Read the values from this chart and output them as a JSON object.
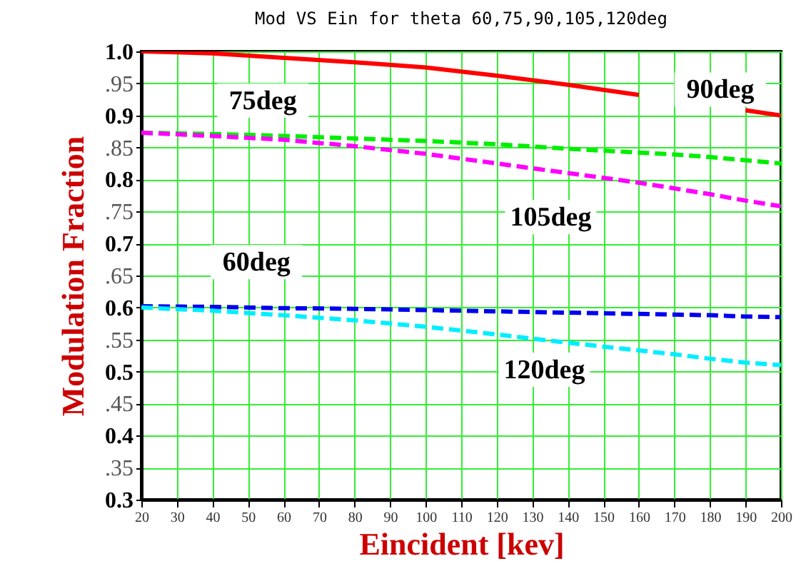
{
  "chart_data": {
    "type": "line",
    "title": "Mod VS Ein for theta 60,75,90,105,120deg",
    "xlabel": "Eincident [kev]",
    "ylabel": "Modulation Fraction",
    "x": [
      20,
      40,
      60,
      80,
      100,
      120,
      140,
      160,
      170,
      180,
      190,
      200
    ],
    "series": [
      {
        "name": "90deg",
        "color": "#ff0000",
        "line_style": "solid",
        "values": [
          1.0,
          0.997,
          0.99,
          0.983,
          0.975,
          0.962,
          0.948,
          0.932,
          null,
          null,
          0.908,
          0.9
        ]
      },
      {
        "name": "75deg",
        "color": "#00ee00",
        "line_style": "dashed",
        "values": [
          0.873,
          0.871,
          0.868,
          0.864,
          0.86,
          0.855,
          0.848,
          0.842,
          0.839,
          0.835,
          0.83,
          0.825
        ]
      },
      {
        "name": "105deg",
        "color": "#ff00ff",
        "line_style": "dashed",
        "values": [
          0.873,
          0.868,
          0.862,
          0.852,
          0.84,
          0.825,
          0.81,
          0.795,
          0.786,
          0.777,
          0.767,
          0.758
        ]
      },
      {
        "name": "60deg",
        "color": "#0000ee",
        "line_style": "dashed",
        "values": [
          0.602,
          0.601,
          0.599,
          0.598,
          0.596,
          0.594,
          0.592,
          0.59,
          0.589,
          0.588,
          0.586,
          0.585
        ]
      },
      {
        "name": "120deg",
        "color": "#00eeff",
        "line_style": "dashed",
        "values": [
          0.6,
          0.595,
          0.588,
          0.58,
          0.57,
          0.558,
          0.545,
          0.533,
          0.527,
          0.52,
          0.514,
          0.51
        ]
      }
    ],
    "xlim": [
      20,
      200
    ],
    "xticks": [
      20,
      30,
      40,
      50,
      60,
      70,
      80,
      90,
      100,
      110,
      120,
      130,
      140,
      150,
      160,
      170,
      180,
      190,
      200
    ],
    "ylim": [
      0.3,
      1.0
    ],
    "yticks": [
      0.3,
      {
        "value": 0.35,
        "label": ".35"
      },
      0.4,
      {
        "value": 0.45,
        "label": ".45"
      },
      0.5,
      {
        "value": 0.55,
        "label": ".55"
      },
      0.6,
      {
        "value": 0.65,
        "label": ".65"
      },
      0.7,
      {
        "value": 0.75,
        "label": ".75"
      },
      0.8,
      {
        "value": 0.85,
        "label": ".85"
      },
      0.9,
      {
        "value": 0.95,
        "label": ".95"
      },
      {
        "value": 1.0,
        "label": "1.0"
      }
    ],
    "grid": true
  }
}
